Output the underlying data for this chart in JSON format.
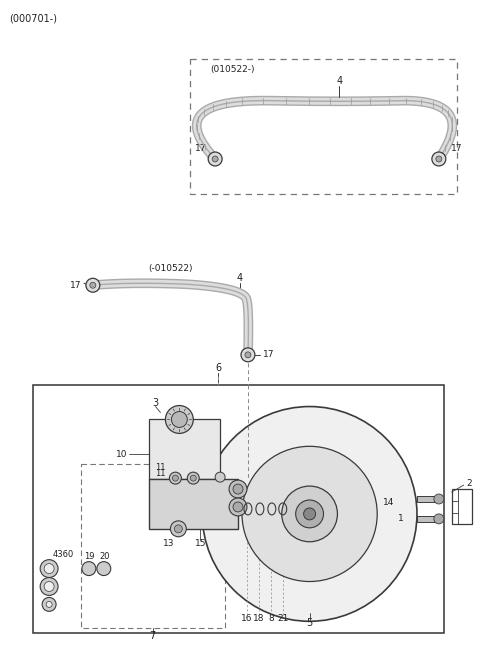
{
  "background_color": "#ffffff",
  "line_color": "#3a3a3a",
  "text_color": "#222222",
  "gray_part": "#b0b0b0",
  "dark_part": "#505050",
  "figsize": [
    4.8,
    6.55
  ],
  "dpi": 100,
  "title": "(000701-)",
  "upper_box_label": "(010522-)",
  "lower_hose_label": "(-010522)"
}
